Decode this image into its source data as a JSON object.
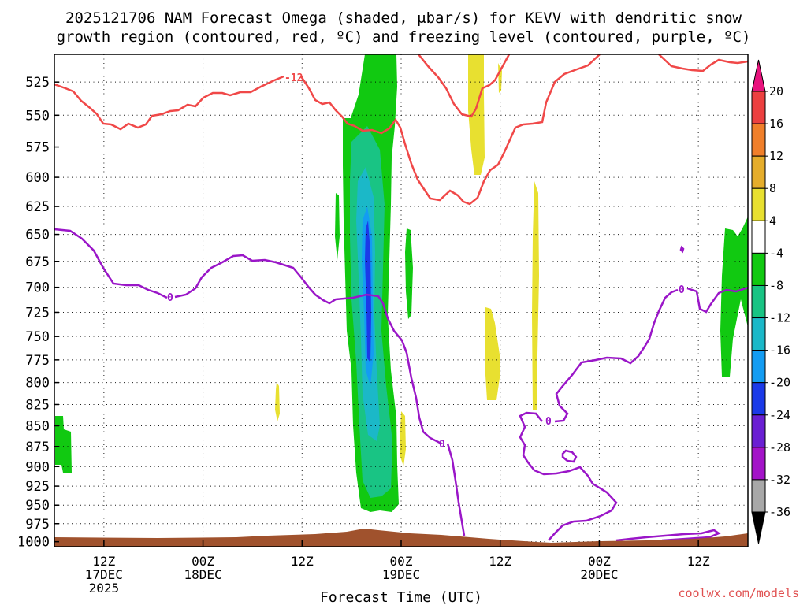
{
  "chart_data": {
    "type": "heatmap",
    "title_line1": "2025121706 NAM Forecast Omega (shaded, μbar/s) for KEVV with dendritic snow",
    "title_line2": "growth region (contoured, red, ºC) and freezing level (contoured, purple, ºC)",
    "xlabel": "Forecast Time (UTC)",
    "watermark": "coolwx.com/models",
    "x_ticks": [
      {
        "hour": 12,
        "lines": [
          "12Z",
          "17DEC",
          "2025"
        ]
      },
      {
        "hour": 24,
        "lines": [
          "00Z",
          "18DEC"
        ]
      },
      {
        "hour": 36,
        "lines": [
          "12Z"
        ]
      },
      {
        "hour": 48,
        "lines": [
          "00Z",
          "19DEC"
        ]
      },
      {
        "hour": 60,
        "lines": [
          "12Z"
        ]
      },
      {
        "hour": 72,
        "lines": [
          "00Z",
          "20DEC"
        ]
      },
      {
        "hour": 84,
        "lines": [
          "12Z"
        ]
      }
    ],
    "x_range": [
      6,
      90
    ],
    "y_ticks": [
      "525",
      "550",
      "575",
      "600",
      "625",
      "650",
      "675",
      "700",
      "725",
      "750",
      "775",
      "800",
      "825",
      "850",
      "875",
      "900",
      "925",
      "950",
      "975",
      "1000"
    ],
    "y_range_hpa": [
      505,
      1007
    ],
    "colorbar": {
      "labels": [
        "20",
        "16",
        "12",
        "8",
        "4",
        "-4",
        "-8",
        "-12",
        "-16",
        "-20",
        "-24",
        "-28",
        "-32",
        "-36"
      ],
      "colors": [
        "#e8137d",
        "#ec4040",
        "#f07f2a",
        "#e5ad2b",
        "#e8e030",
        "#ffffff",
        "#11c911",
        "#19c484",
        "#1bb8c8",
        "#139cf2",
        "#1b3ae8",
        "#6a1fd3",
        "#a313c8",
        "#a8a8a8",
        "#000000"
      ]
    },
    "contour_labels": {
      "dgz": "-12",
      "freezing": "0"
    },
    "colors": {
      "dgz": "#f04848",
      "freezing": "#9a16c8",
      "ground": "#a0522d"
    }
  }
}
